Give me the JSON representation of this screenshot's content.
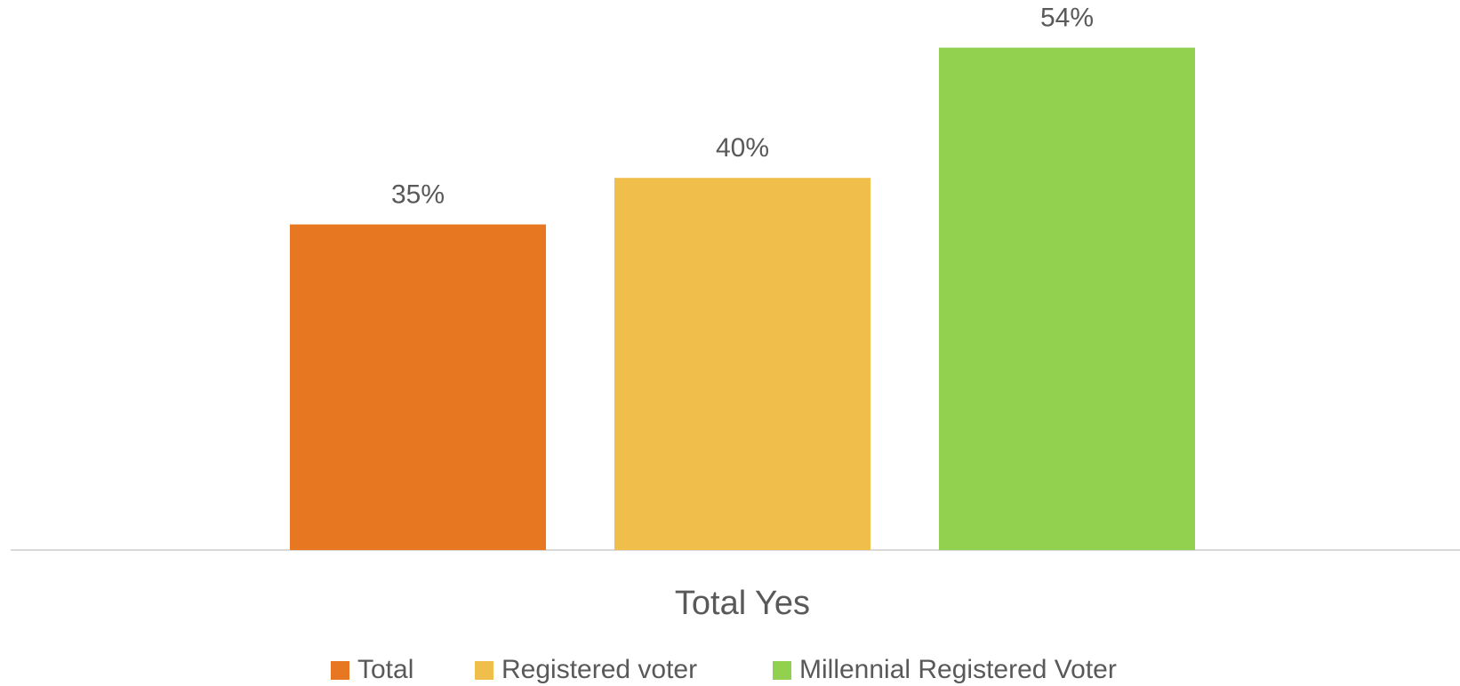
{
  "chart_data": {
    "type": "bar",
    "categories": [
      "Total Yes"
    ],
    "series": [
      {
        "name": "Total",
        "color": "#e87722",
        "values": [
          35
        ],
        "value_labels": [
          "35%"
        ]
      },
      {
        "name": "Registered voter",
        "color": "#f0be4a",
        "values": [
          40
        ],
        "value_labels": [
          "40%"
        ]
      },
      {
        "name": "Millennial Registered Voter",
        "color": "#92d050",
        "values": [
          54
        ],
        "value_labels": [
          "54%"
        ]
      }
    ],
    "legend": "bottom"
  }
}
